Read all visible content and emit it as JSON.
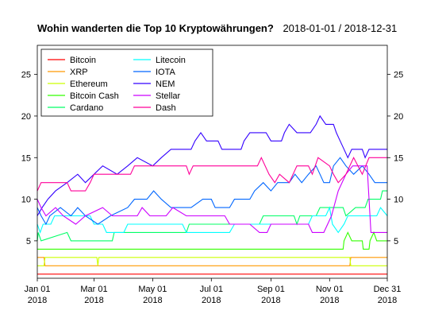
{
  "title": "Wohin wanderten die Top 10 Kryptowährungen?",
  "subtitle": "2018-01-01 / 2018-12-31",
  "chart_data": {
    "type": "line",
    "title": "Wohin wanderten die Top 10 Kryptowährungen?",
    "subtitle": "2018-01-01 / 2018-12-31",
    "xlabel": "",
    "ylabel": "",
    "xlim": [
      "2018-01-01",
      "2018-12-31"
    ],
    "ylim": [
      0.5,
      28.5
    ],
    "y_ticks": [
      5,
      10,
      15,
      20,
      25
    ],
    "x_ticks": [
      {
        "date": "2018-01-01",
        "label": [
          "Jan 01",
          "2018"
        ]
      },
      {
        "date": "2018-03-01",
        "label": [
          "Mar 01",
          "2018"
        ]
      },
      {
        "date": "2018-05-01",
        "label": [
          "May 01",
          "2018"
        ]
      },
      {
        "date": "2018-07-01",
        "label": [
          "Jul 01",
          "2018"
        ]
      },
      {
        "date": "2018-09-01",
        "label": [
          "Sep 01",
          "2018"
        ]
      },
      {
        "date": "2018-11-01",
        "label": [
          "Nov 01",
          "2018"
        ]
      },
      {
        "date": "2018-12-31",
        "label": [
          "Dec 31",
          "2018"
        ]
      }
    ],
    "grid": false,
    "y_axis_both_sides": true,
    "legend_position": "top-left",
    "series": [
      {
        "name": "Bitcoin",
        "color": "#ff0000",
        "points": [
          [
            "2018-01-01",
            1
          ],
          [
            "2018-12-31",
            1
          ]
        ]
      },
      {
        "name": "XRP",
        "color": "#ff9900",
        "points": [
          [
            "2018-01-01",
            3
          ],
          [
            "2018-01-08",
            3
          ],
          [
            "2018-01-09",
            2
          ],
          [
            "2018-11-22",
            2
          ],
          [
            "2018-11-23",
            3
          ],
          [
            "2018-12-31",
            3
          ]
        ]
      },
      {
        "name": "Ethereum",
        "color": "#ccff00",
        "points": [
          [
            "2018-01-01",
            2
          ],
          [
            "2018-01-08",
            2
          ],
          [
            "2018-01-09",
            3
          ],
          [
            "2018-03-04",
            3
          ],
          [
            "2018-03-05",
            2
          ],
          [
            "2018-03-06",
            3
          ],
          [
            "2018-11-22",
            3
          ],
          [
            "2018-11-23",
            2
          ],
          [
            "2018-12-31",
            2
          ]
        ]
      },
      {
        "name": "Bitcoin Cash",
        "color": "#33ff00",
        "points": [
          [
            "2018-01-01",
            4
          ],
          [
            "2018-11-15",
            4
          ],
          [
            "2018-11-16",
            5
          ],
          [
            "2018-11-20",
            6
          ],
          [
            "2018-11-24",
            5
          ],
          [
            "2018-12-05",
            5
          ],
          [
            "2018-12-06",
            4
          ],
          [
            "2018-12-12",
            4
          ],
          [
            "2018-12-13",
            5
          ],
          [
            "2018-12-17",
            6
          ],
          [
            "2018-12-20",
            5
          ],
          [
            "2018-12-31",
            5
          ]
        ]
      },
      {
        "name": "Cardano",
        "color": "#00ff66",
        "points": [
          [
            "2018-01-01",
            5
          ],
          [
            "2018-01-02",
            6
          ],
          [
            "2018-01-05",
            5
          ],
          [
            "2018-02-01",
            6
          ],
          [
            "2018-02-05",
            5
          ],
          [
            "2018-03-20",
            5
          ],
          [
            "2018-03-22",
            6
          ],
          [
            "2018-06-05",
            6
          ],
          [
            "2018-06-08",
            7
          ],
          [
            "2018-08-20",
            7
          ],
          [
            "2018-08-24",
            8
          ],
          [
            "2018-09-25",
            8
          ],
          [
            "2018-09-28",
            7
          ],
          [
            "2018-10-01",
            8
          ],
          [
            "2018-10-18",
            8
          ],
          [
            "2018-10-22",
            9
          ],
          [
            "2018-11-15",
            9
          ],
          [
            "2018-11-18",
            8
          ],
          [
            "2018-11-28",
            9
          ],
          [
            "2018-12-08",
            9
          ],
          [
            "2018-12-11",
            10
          ],
          [
            "2018-12-24",
            10
          ],
          [
            "2018-12-26",
            11
          ],
          [
            "2018-12-31",
            11
          ]
        ]
      },
      {
        "name": "Litecoin",
        "color": "#00ffff",
        "points": [
          [
            "2018-01-01",
            7
          ],
          [
            "2018-01-04",
            6
          ],
          [
            "2018-01-07",
            7
          ],
          [
            "2018-01-15",
            7
          ],
          [
            "2018-01-19",
            8
          ],
          [
            "2018-02-25",
            8
          ],
          [
            "2018-03-01",
            7
          ],
          [
            "2018-03-10",
            7
          ],
          [
            "2018-03-14",
            6
          ],
          [
            "2018-04-01",
            6
          ],
          [
            "2018-04-05",
            7
          ],
          [
            "2018-06-01",
            7
          ],
          [
            "2018-06-05",
            6
          ],
          [
            "2018-07-20",
            6
          ],
          [
            "2018-07-25",
            7
          ],
          [
            "2018-10-10",
            7
          ],
          [
            "2018-10-14",
            8
          ],
          [
            "2018-10-28",
            8
          ],
          [
            "2018-11-01",
            9
          ],
          [
            "2018-11-04",
            7
          ],
          [
            "2018-11-10",
            6
          ],
          [
            "2018-11-16",
            7
          ],
          [
            "2018-11-20",
            8
          ],
          [
            "2018-12-20",
            8
          ],
          [
            "2018-12-24",
            9
          ],
          [
            "2018-12-31",
            8
          ]
        ]
      },
      {
        "name": "IOTA",
        "color": "#0066ff",
        "points": [
          [
            "2018-01-01",
            9
          ],
          [
            "2018-01-05",
            8
          ],
          [
            "2018-01-10",
            7
          ],
          [
            "2018-01-14",
            8
          ],
          [
            "2018-01-25",
            9
          ],
          [
            "2018-02-05",
            8
          ],
          [
            "2018-02-12",
            9
          ],
          [
            "2018-02-20",
            8
          ],
          [
            "2018-03-05",
            7
          ],
          [
            "2018-03-18",
            8
          ],
          [
            "2018-04-05",
            9
          ],
          [
            "2018-04-12",
            10
          ],
          [
            "2018-04-25",
            10
          ],
          [
            "2018-05-02",
            11
          ],
          [
            "2018-05-10",
            10
          ],
          [
            "2018-05-20",
            9
          ],
          [
            "2018-06-10",
            9
          ],
          [
            "2018-06-22",
            10
          ],
          [
            "2018-07-01",
            10
          ],
          [
            "2018-07-05",
            9
          ],
          [
            "2018-07-20",
            9
          ],
          [
            "2018-07-25",
            10
          ],
          [
            "2018-08-10",
            10
          ],
          [
            "2018-08-15",
            11
          ],
          [
            "2018-08-24",
            12
          ],
          [
            "2018-09-01",
            11
          ],
          [
            "2018-09-08",
            12
          ],
          [
            "2018-09-20",
            12
          ],
          [
            "2018-09-26",
            13
          ],
          [
            "2018-10-03",
            12
          ],
          [
            "2018-10-10",
            13
          ],
          [
            "2018-10-18",
            14
          ],
          [
            "2018-10-22",
            13
          ],
          [
            "2018-10-26",
            12
          ],
          [
            "2018-11-01",
            12
          ],
          [
            "2018-11-05",
            14
          ],
          [
            "2018-11-12",
            15
          ],
          [
            "2018-11-18",
            14
          ],
          [
            "2018-11-26",
            13
          ],
          [
            "2018-12-05",
            14
          ],
          [
            "2018-12-12",
            13
          ],
          [
            "2018-12-18",
            12
          ],
          [
            "2018-12-31",
            12
          ]
        ]
      },
      {
        "name": "NEM",
        "color": "#3300ff",
        "points": [
          [
            "2018-01-01",
            8
          ],
          [
            "2018-01-06",
            9
          ],
          [
            "2018-01-12",
            10
          ],
          [
            "2018-01-20",
            11
          ],
          [
            "2018-02-01",
            12
          ],
          [
            "2018-02-12",
            13
          ],
          [
            "2018-02-20",
            12
          ],
          [
            "2018-03-01",
            13
          ],
          [
            "2018-03-10",
            14
          ],
          [
            "2018-03-25",
            13
          ],
          [
            "2018-04-05",
            14
          ],
          [
            "2018-04-15",
            15
          ],
          [
            "2018-05-01",
            14
          ],
          [
            "2018-05-10",
            15
          ],
          [
            "2018-05-20",
            16
          ],
          [
            "2018-06-10",
            16
          ],
          [
            "2018-06-14",
            17
          ],
          [
            "2018-06-20",
            18
          ],
          [
            "2018-06-26",
            17
          ],
          [
            "2018-07-08",
            17
          ],
          [
            "2018-07-12",
            16
          ],
          [
            "2018-08-01",
            16
          ],
          [
            "2018-08-04",
            17
          ],
          [
            "2018-08-10",
            18
          ],
          [
            "2018-08-27",
            18
          ],
          [
            "2018-09-01",
            17
          ],
          [
            "2018-09-12",
            17
          ],
          [
            "2018-09-15",
            18
          ],
          [
            "2018-09-20",
            19
          ],
          [
            "2018-09-28",
            18
          ],
          [
            "2018-10-12",
            18
          ],
          [
            "2018-10-18",
            19
          ],
          [
            "2018-10-22",
            20
          ],
          [
            "2018-10-28",
            19
          ],
          [
            "2018-11-05",
            19
          ],
          [
            "2018-11-08",
            18
          ],
          [
            "2018-11-12",
            17
          ],
          [
            "2018-11-16",
            16
          ],
          [
            "2018-11-20",
            15
          ],
          [
            "2018-11-24",
            16
          ],
          [
            "2018-12-05",
            16
          ],
          [
            "2018-12-08",
            15
          ],
          [
            "2018-12-12",
            16
          ],
          [
            "2018-12-31",
            16
          ]
        ]
      },
      {
        "name": "Stellar",
        "color": "#cc00ff",
        "points": [
          [
            "2018-01-01",
            10
          ],
          [
            "2018-01-05",
            9
          ],
          [
            "2018-01-10",
            8
          ],
          [
            "2018-01-20",
            9
          ],
          [
            "2018-01-28",
            8
          ],
          [
            "2018-02-10",
            7
          ],
          [
            "2018-02-20",
            8
          ],
          [
            "2018-03-10",
            9
          ],
          [
            "2018-03-20",
            8
          ],
          [
            "2018-04-15",
            8
          ],
          [
            "2018-04-20",
            9
          ],
          [
            "2018-04-28",
            8
          ],
          [
            "2018-05-15",
            8
          ],
          [
            "2018-05-22",
            9
          ],
          [
            "2018-06-05",
            8
          ],
          [
            "2018-07-15",
            8
          ],
          [
            "2018-07-20",
            7
          ],
          [
            "2018-08-10",
            7
          ],
          [
            "2018-08-20",
            6
          ],
          [
            "2018-08-28",
            6
          ],
          [
            "2018-09-01",
            7
          ],
          [
            "2018-10-10",
            7
          ],
          [
            "2018-10-14",
            6
          ],
          [
            "2018-10-26",
            6
          ],
          [
            "2018-11-03",
            8
          ],
          [
            "2018-11-10",
            11
          ],
          [
            "2018-11-18",
            13
          ],
          [
            "2018-11-25",
            14
          ],
          [
            "2018-12-10",
            14
          ],
          [
            "2018-12-14",
            6
          ],
          [
            "2018-12-31",
            6
          ]
        ]
      },
      {
        "name": "Dash",
        "color": "#ff0099",
        "points": [
          [
            "2018-01-01",
            11
          ],
          [
            "2018-01-05",
            12
          ],
          [
            "2018-02-01",
            12
          ],
          [
            "2018-02-05",
            11
          ],
          [
            "2018-02-20",
            11
          ],
          [
            "2018-02-25",
            12
          ],
          [
            "2018-03-01",
            13
          ],
          [
            "2018-04-08",
            13
          ],
          [
            "2018-04-12",
            14
          ],
          [
            "2018-06-05",
            14
          ],
          [
            "2018-06-08",
            13
          ],
          [
            "2018-06-12",
            14
          ],
          [
            "2018-08-18",
            14
          ],
          [
            "2018-08-22",
            15
          ],
          [
            "2018-08-30",
            13
          ],
          [
            "2018-09-05",
            12
          ],
          [
            "2018-09-10",
            13
          ],
          [
            "2018-09-20",
            12
          ],
          [
            "2018-09-28",
            14
          ],
          [
            "2018-10-10",
            14
          ],
          [
            "2018-10-14",
            13
          ],
          [
            "2018-10-20",
            15
          ],
          [
            "2018-11-01",
            14
          ],
          [
            "2018-11-05",
            13
          ],
          [
            "2018-11-10",
            12
          ],
          [
            "2018-11-18",
            13
          ],
          [
            "2018-11-26",
            15
          ],
          [
            "2018-12-05",
            13
          ],
          [
            "2018-12-12",
            15
          ],
          [
            "2018-12-31",
            15
          ]
        ]
      }
    ]
  }
}
